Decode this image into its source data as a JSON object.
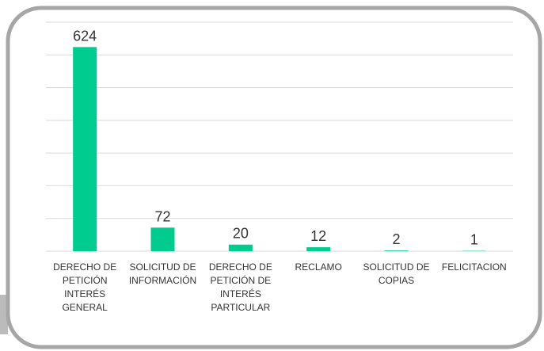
{
  "chart_data": {
    "type": "bar",
    "categories": [
      "DERECHO DE PETICIÓN INTERÉS GENERAL",
      "SOLICITUD DE INFORMACIÓN",
      "DERECHO DE PETICIÓN DE INTERÉS PARTICULAR",
      "RECLAMO",
      "SOLICITUD DE COPIAS",
      "FELICITACION"
    ],
    "values": [
      624,
      72,
      20,
      12,
      2,
      1
    ],
    "color": "#00cc8f",
    "ylim": [
      0,
      700
    ],
    "yticks": [
      0,
      100,
      200,
      300,
      400,
      500,
      600,
      700
    ],
    "grid": true
  }
}
